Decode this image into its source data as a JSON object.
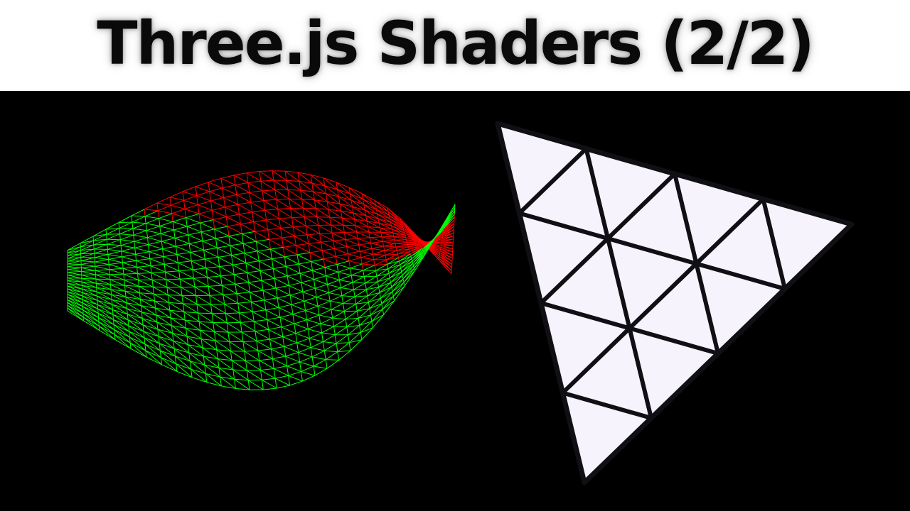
{
  "title": "Three.js Shaders (2/2)",
  "colors": {
    "background": "#000000",
    "title_bar": "#ffffff",
    "title_text": "#0a0a0a",
    "wave_green": "#00ff00",
    "wave_red": "#ff0000",
    "triangle_fill": "#f6f3fd",
    "triangle_edge": "#101014"
  },
  "scene": {
    "left_object": "wireframe-wave-mesh",
    "right_object": "subdivided-triangle",
    "triangle_subdivisions": 4
  }
}
